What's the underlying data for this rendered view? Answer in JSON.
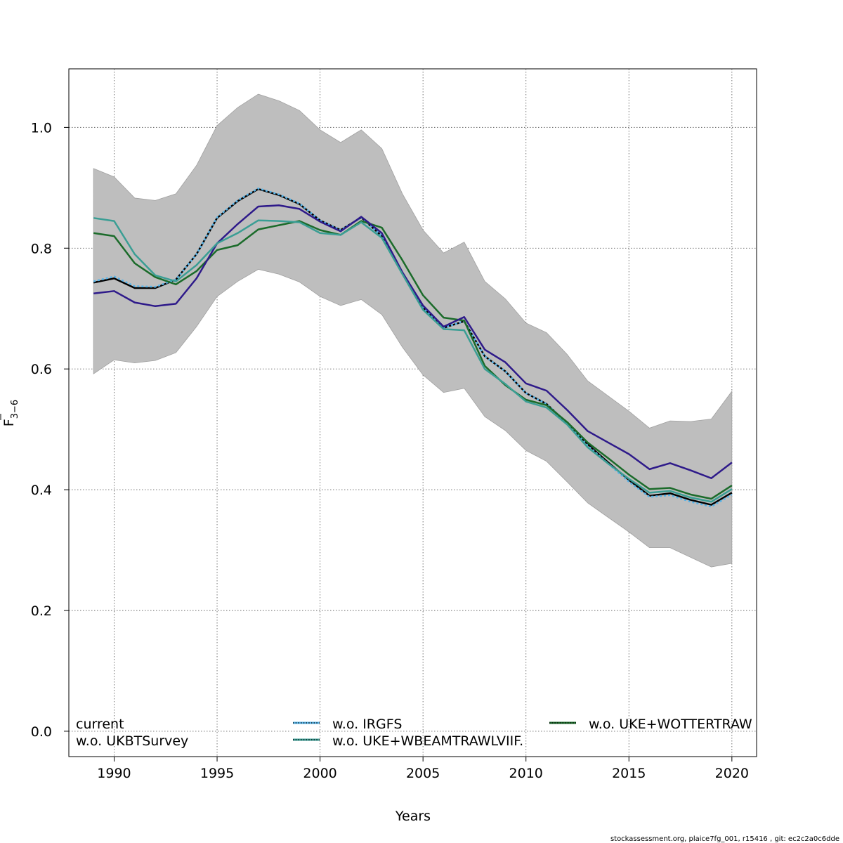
{
  "chart_data": {
    "type": "line",
    "xlabel": "Years",
    "ylabel_main": "F",
    "ylabel_sub": "3−6",
    "xlim": [
      1987.8,
      2021.2
    ],
    "ylim": [
      -0.042,
      1.097
    ],
    "xticks": [
      1990,
      1995,
      2000,
      2005,
      2010,
      2015,
      2020
    ],
    "yticks": [
      0.0,
      0.2,
      0.4,
      0.6,
      0.8,
      1.0
    ],
    "ytick_labels": [
      "0.0",
      "0.2",
      "0.4",
      "0.6",
      "0.8",
      "1.0"
    ],
    "grid": true,
    "x": [
      1989,
      1990,
      1991,
      1992,
      1993,
      1994,
      1995,
      1996,
      1997,
      1998,
      1999,
      2000,
      2001,
      2002,
      2003,
      2004,
      2005,
      2006,
      2007,
      2008,
      2009,
      2010,
      2011,
      2012,
      2013,
      2014,
      2015,
      2016,
      2017,
      2018,
      2019,
      2020
    ],
    "band": {
      "color": "#bebebe",
      "upper": [
        0.932,
        0.918,
        0.883,
        0.879,
        0.89,
        0.937,
        1.003,
        1.033,
        1.055,
        1.044,
        1.028,
        0.996,
        0.975,
        0.996,
        0.965,
        0.89,
        0.83,
        0.792,
        0.81,
        0.745,
        0.716,
        0.676,
        0.66,
        0.624,
        0.58,
        0.555,
        0.53,
        0.502,
        0.514,
        0.513,
        0.517,
        0.563
      ],
      "lower": [
        0.592,
        0.615,
        0.61,
        0.614,
        0.627,
        0.67,
        0.72,
        0.745,
        0.765,
        0.757,
        0.744,
        0.72,
        0.705,
        0.715,
        0.69,
        0.636,
        0.59,
        0.561,
        0.568,
        0.521,
        0.498,
        0.465,
        0.447,
        0.413,
        0.378,
        0.354,
        0.33,
        0.304,
        0.304,
        0.288,
        0.272,
        0.278
      ]
    },
    "series": [
      {
        "name": "current",
        "color": "#000000",
        "dash": "",
        "width": 2.5,
        "values": [
          0.743,
          0.75,
          0.734,
          0.734,
          0.748,
          0.79,
          0.85,
          0.878,
          0.898,
          0.888,
          0.873,
          0.846,
          0.83,
          0.851,
          0.82,
          0.758,
          0.702,
          0.668,
          0.679,
          0.621,
          0.596,
          0.56,
          0.542,
          0.51,
          0.475,
          0.445,
          0.416,
          0.39,
          0.394,
          0.383,
          0.375,
          0.395
        ]
      },
      {
        "name": "w.o. IRGFS",
        "color": "#56b4e9",
        "dash": "3,3",
        "width": 2.5,
        "values": [
          0.745,
          0.753,
          0.737,
          0.736,
          0.748,
          0.79,
          0.851,
          0.879,
          0.899,
          0.889,
          0.874,
          0.846,
          0.83,
          0.851,
          0.82,
          0.758,
          0.702,
          0.668,
          0.679,
          0.621,
          0.596,
          0.56,
          0.542,
          0.51,
          0.473,
          0.443,
          0.413,
          0.388,
          0.391,
          0.38,
          0.372,
          0.392
        ]
      },
      {
        "name": "w.o. UKE+WOTTERTRAWL",
        "color": "#1b6b2a",
        "dash": "",
        "width": 2.5,
        "values": [
          0.825,
          0.82,
          0.775,
          0.752,
          0.74,
          0.762,
          0.797,
          0.805,
          0.831,
          0.838,
          0.845,
          0.83,
          0.822,
          0.845,
          0.834,
          0.78,
          0.722,
          0.685,
          0.68,
          0.605,
          0.573,
          0.549,
          0.54,
          0.512,
          0.478,
          0.452,
          0.425,
          0.401,
          0.403,
          0.392,
          0.385,
          0.407
        ]
      },
      {
        "name": "w.o. UKBTSurvey",
        "color": "#2e1a8a",
        "dash": "",
        "width": 2.5,
        "values": [
          0.725,
          0.729,
          0.71,
          0.704,
          0.708,
          0.75,
          0.808,
          0.84,
          0.869,
          0.871,
          0.865,
          0.844,
          0.828,
          0.852,
          0.825,
          0.76,
          0.705,
          0.67,
          0.686,
          0.632,
          0.611,
          0.576,
          0.564,
          0.532,
          0.497,
          0.478,
          0.459,
          0.434,
          0.444,
          0.432,
          0.419,
          0.445
        ]
      },
      {
        "name": "w.o. UKE+WBEAMTRAWLVIIF.",
        "color": "#3a9e94",
        "dash": "",
        "width": 2.5,
        "values": [
          0.85,
          0.845,
          0.79,
          0.755,
          0.745,
          0.772,
          0.808,
          0.825,
          0.846,
          0.845,
          0.843,
          0.825,
          0.822,
          0.843,
          0.817,
          0.757,
          0.698,
          0.666,
          0.664,
          0.6,
          0.575,
          0.546,
          0.536,
          0.508,
          0.47,
          0.443,
          0.418,
          0.395,
          0.398,
          0.387,
          0.38,
          0.401
        ]
      }
    ],
    "legend": {
      "placement": "bottom",
      "items": [
        {
          "label": "current",
          "color": "#000000",
          "style": "none"
        },
        {
          "label": "w.o. UKBTSurvey",
          "color": "#2e1a8a",
          "style": "none"
        },
        {
          "label": "w.o. IRGFS",
          "color": "#56b4e9",
          "style": "dotted"
        },
        {
          "label": "w.o. UKE+WBEAMTRAWLVIIF.",
          "color": "#3a9e94",
          "style": "dotted"
        },
        {
          "label": "w.o. UKE+WOTTERTRAW",
          "color": "#1b6b2a",
          "style": "dotted"
        }
      ]
    },
    "footer": "stockassessment.org, plaice7fg_001, r15416 , git: ec2c2a0c6dde"
  }
}
